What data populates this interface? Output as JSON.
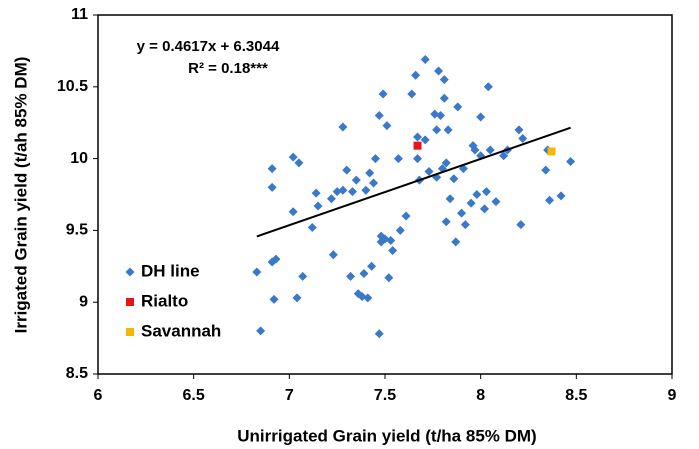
{
  "chart_data": {
    "type": "scatter",
    "xlabel": "Unirrigated Grain yield (t/ha 85% DM)",
    "ylabel": "Irrigated Grain yield (t/ah 85% DM)",
    "annotations": [
      "y = 0.4617x + 6.3044",
      "R² = 0.18***"
    ],
    "xlim": [
      6,
      9
    ],
    "xticks": [
      6,
      6.5,
      7,
      7.5,
      8,
      8.5,
      9
    ],
    "ylim": [
      8.5,
      11
    ],
    "yticks": [
      8.5,
      9,
      9.5,
      10,
      10.5,
      11
    ],
    "legend": "lower-left",
    "trendline": {
      "slope": 0.4617,
      "intercept": 6.3044,
      "color": "#000000"
    },
    "series": [
      {
        "name": "DH line",
        "color": "#3a78c9",
        "marker": "diamond",
        "x": [
          6.83,
          6.85,
          6.91,
          6.91,
          6.91,
          6.92,
          6.93,
          7.02,
          7.02,
          7.04,
          7.05,
          7.07,
          7.12,
          7.14,
          7.15,
          7.22,
          7.23,
          7.25,
          7.28,
          7.28,
          7.3,
          7.32,
          7.33,
          7.35,
          7.36,
          7.38,
          7.39,
          7.4,
          7.41,
          7.42,
          7.43,
          7.44,
          7.45,
          7.47,
          7.47,
          7.48,
          7.48,
          7.49,
          7.5,
          7.51,
          7.52,
          7.53,
          7.54,
          7.57,
          7.58,
          7.61,
          7.64,
          7.66,
          7.67,
          7.67,
          7.68,
          7.71,
          7.71,
          7.73,
          7.76,
          7.77,
          7.77,
          7.78,
          7.79,
          7.8,
          7.81,
          7.81,
          7.82,
          7.82,
          7.83,
          7.84,
          7.86,
          7.87,
          7.88,
          7.9,
          7.91,
          7.92,
          7.95,
          7.96,
          7.97,
          7.98,
          8.0,
          8.0,
          8.02,
          8.03,
          8.04,
          8.05,
          8.08,
          8.12,
          8.14,
          8.2,
          8.21,
          8.22,
          8.34,
          8.35,
          8.36,
          8.42,
          8.47
        ],
        "values": [
          9.21,
          8.8,
          9.93,
          9.8,
          9.28,
          9.02,
          9.3,
          10.01,
          9.63,
          9.03,
          9.97,
          9.18,
          9.52,
          9.76,
          9.67,
          9.72,
          9.33,
          9.77,
          10.22,
          9.78,
          9.92,
          9.18,
          9.77,
          9.85,
          9.06,
          9.04,
          9.2,
          9.78,
          9.03,
          9.9,
          9.25,
          9.83,
          10.0,
          10.3,
          8.78,
          9.46,
          9.42,
          10.45,
          9.44,
          10.23,
          9.17,
          9.43,
          9.36,
          10.0,
          9.5,
          9.6,
          10.45,
          10.58,
          10.15,
          10.0,
          9.85,
          10.69,
          10.13,
          9.91,
          10.31,
          10.2,
          9.87,
          10.61,
          10.3,
          9.93,
          10.55,
          10.42,
          9.97,
          9.56,
          10.2,
          9.72,
          9.86,
          9.42,
          10.36,
          9.62,
          9.93,
          9.54,
          9.69,
          10.09,
          10.06,
          9.75,
          10.29,
          10.02,
          9.65,
          9.77,
          10.5,
          10.06,
          9.7,
          10.02,
          10.06,
          10.2,
          9.54,
          10.14,
          9.92,
          10.06,
          9.71,
          9.74,
          9.98
        ]
      },
      {
        "name": "Rialto",
        "color": "#e8141c",
        "marker": "square",
        "x": [
          7.67
        ],
        "values": [
          10.09
        ]
      },
      {
        "name": "Savannah",
        "color": "#f5b800",
        "marker": "square",
        "x": [
          8.37
        ],
        "values": [
          10.05
        ]
      }
    ]
  }
}
